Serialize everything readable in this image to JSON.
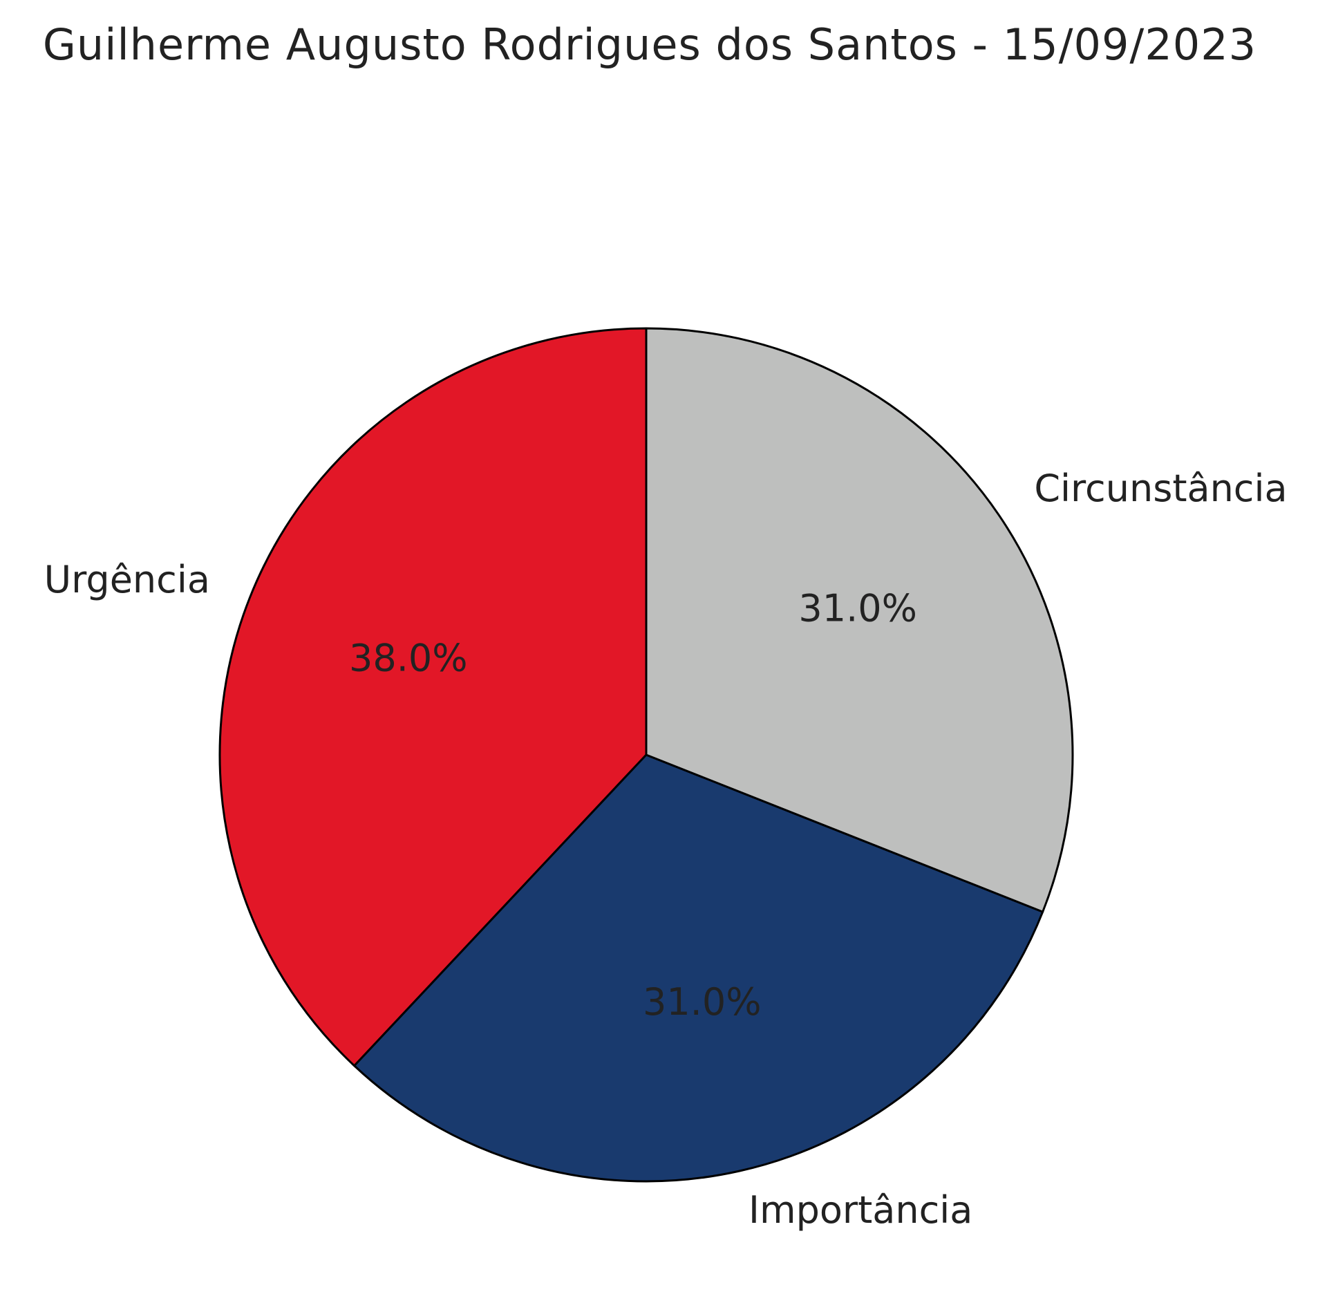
{
  "chart_data": {
    "type": "pie",
    "title": "Guilherme Augusto Rodrigues dos Santos - 15/09/2023",
    "start_angle_deg": 90,
    "direction": "counterclockwise",
    "slices": [
      {
        "label": "Urgência",
        "value": 38.0,
        "pct_label": "38.0%",
        "color": "#E21727"
      },
      {
        "label": "Importância",
        "value": 31.0,
        "pct_label": "31.0%",
        "color": "#193A6E"
      },
      {
        "label": "Circunstância",
        "value": 31.0,
        "pct_label": "31.0%",
        "color": "#BEBFBE"
      }
    ]
  }
}
